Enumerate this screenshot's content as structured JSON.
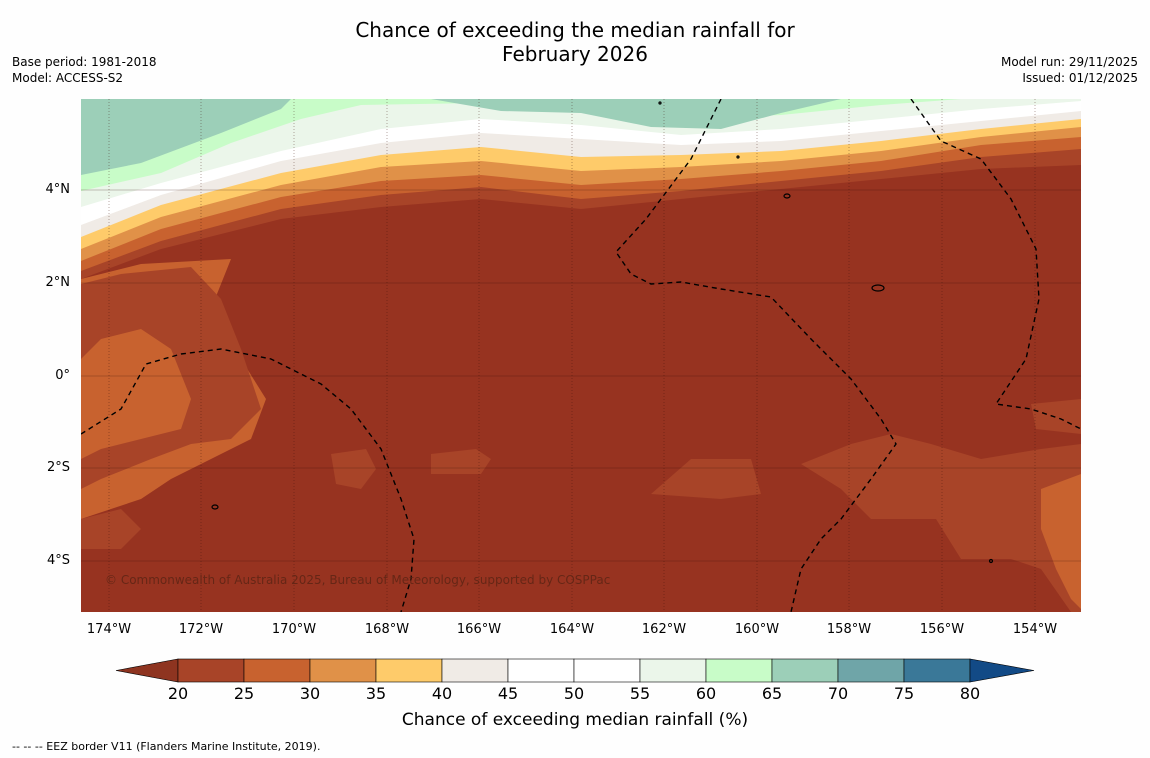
{
  "title_line1": "Chance of exceeding the median rainfall for",
  "title_line2": "February 2026",
  "base_period": "Base period: 1981-2018",
  "model": "Model: ACCESS-S2",
  "model_run": "Model run: 29/11/2025",
  "issued": "Issued: 01/12/2025",
  "copyright": "© Commonwealth of Australia 2025, Bureau of Meteorology, supported by COSPPac",
  "colorbar_label": "Chance of exceeding median rainfall (%)",
  "footnote": "--  --  -- EEZ border V11 (Flanders Marine Institute, 2019).",
  "x_ticks": [
    "174°W",
    "172°W",
    "170°W",
    "168°W",
    "166°W",
    "164°W",
    "162°W",
    "160°W",
    "158°W",
    "156°W",
    "154°W"
  ],
  "y_ticks": [
    "4°N",
    "2°N",
    "0°",
    "2°S",
    "4°S"
  ],
  "colorbar_ticks": [
    "20",
    "25",
    "30",
    "35",
    "40",
    "45",
    "50",
    "55",
    "60",
    "65",
    "70",
    "75",
    "80"
  ],
  "colorbar_colors": [
    "#a84428",
    "#c8622f",
    "#e09148",
    "#fecb6a",
    "#f0ebe6",
    "#ffffff",
    "#ffffff",
    "#ebf6ea",
    "#c8fcc8",
    "#9ccfb8",
    "#6fa5a8",
    "#3a7898"
  ],
  "colorbar_extend_low": "#8e3420",
  "colorbar_extend_high": "#124a86",
  "map_colors": {
    "base": "#973320",
    "c20": "#a84428",
    "c25": "#c8622f",
    "c30": "#e09148",
    "c35": "#fecb6a",
    "c40": "#f0ebe6",
    "c50": "#ffffff",
    "c55": "#ebf6ea",
    "c60": "#c8fcc8",
    "c65": "#9ccfb8"
  }
}
